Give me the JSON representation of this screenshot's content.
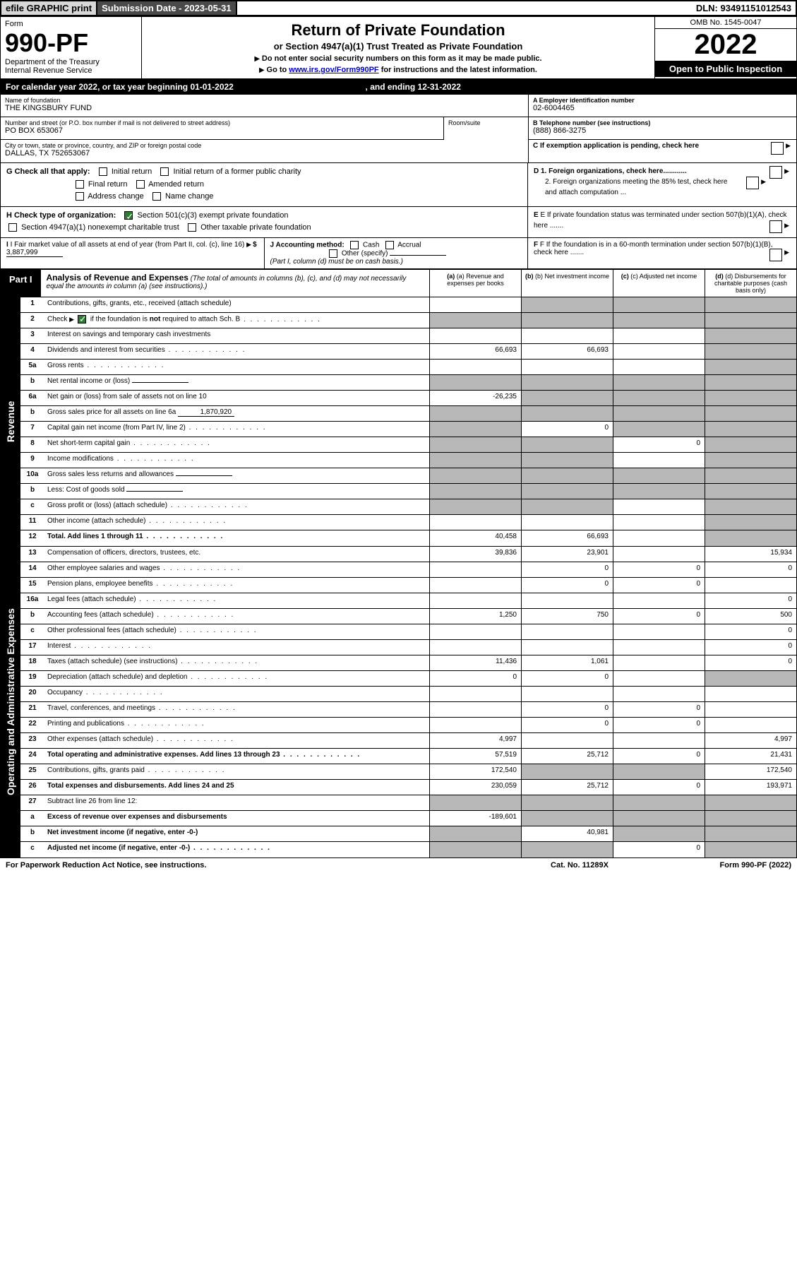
{
  "topbar": {
    "efile": "efile GRAPHIC print",
    "subdate_label": "Submission Date - ",
    "subdate": "2023-05-31",
    "dln_label": "DLN: ",
    "dln": "93491151012543"
  },
  "header": {
    "form_label": "Form",
    "form_num": "990-PF",
    "dept": "Department of the Treasury",
    "irs": "Internal Revenue Service",
    "title": "Return of Private Foundation",
    "subtitle": "or Section 4947(a)(1) Trust Treated as Private Foundation",
    "note1": "Do not enter social security numbers on this form as it may be made public.",
    "note2_a": "Go to ",
    "note2_link": "www.irs.gov/Form990PF",
    "note2_b": " for instructions and the latest information.",
    "omb": "OMB No. 1545-0047",
    "year": "2022",
    "open": "Open to Public Inspection"
  },
  "calyear": {
    "text_a": "For calendar year 2022, or tax year beginning ",
    "begin": "01-01-2022",
    "text_b": ", and ending ",
    "end": "12-31-2022"
  },
  "info": {
    "name_label": "Name of foundation",
    "name": "THE KINGSBURY FUND",
    "addr_label": "Number and street (or P.O. box number if mail is not delivered to street address)",
    "addr": "PO BOX 653067",
    "room_label": "Room/suite",
    "city_label": "City or town, state or province, country, and ZIP or foreign postal code",
    "city": "DALLAS, TX  752653067",
    "a_label": "A Employer identification number",
    "a_val": "02-6004465",
    "b_label": "B Telephone number (see instructions)",
    "b_val": "(888) 866-3275",
    "c_label": "C If exemption application is pending, check here"
  },
  "checks": {
    "g_label": "G Check all that apply:",
    "g_opts": [
      "Initial return",
      "Initial return of a former public charity",
      "Final return",
      "Amended return",
      "Address change",
      "Name change"
    ],
    "h_label": "H Check type of organization:",
    "h_opt1": "Section 501(c)(3) exempt private foundation",
    "h_opt2": "Section 4947(a)(1) nonexempt charitable trust",
    "h_opt3": "Other taxable private foundation",
    "d1": "D 1. Foreign organizations, check here............",
    "d2": "2. Foreign organizations meeting the 85% test, check here and attach computation ...",
    "e": "E  If private foundation status was terminated under section 507(b)(1)(A), check here .......",
    "f": "F  If the foundation is in a 60-month termination under section 507(b)(1)(B), check here ......."
  },
  "fmv": {
    "i_label": "I Fair market value of all assets at end of year (from Part II, col. (c), line 16)",
    "i_val": "3,887,999",
    "j_label": "J Accounting method:",
    "j_cash": "Cash",
    "j_accrual": "Accrual",
    "j_other": "Other (specify)",
    "j_note": "(Part I, column (d) must be on cash basis.)"
  },
  "part1": {
    "label": "Part I",
    "title": "Analysis of Revenue and Expenses",
    "note": " (The total of amounts in columns (b), (c), and (d) may not necessarily equal the amounts in column (a) (see instructions).)",
    "col_a": "(a)  Revenue and expenses per books",
    "col_b": "(b)  Net investment income",
    "col_c": "(c)  Adjusted net income",
    "col_d": "(d)  Disbursements for charitable purposes (cash basis only)"
  },
  "sides": {
    "revenue": "Revenue",
    "expenses": "Operating and Administrative Expenses"
  },
  "rows": [
    {
      "ln": "1",
      "desc": "Contributions, gifts, grants, etc., received (attach schedule)",
      "a": "",
      "b": "s",
      "c": "s",
      "d": "s"
    },
    {
      "ln": "2",
      "desc": "Check ▶ ☑ if the foundation is not required to attach Sch. B",
      "a": "s",
      "b": "s",
      "c": "s",
      "d": "s",
      "dots": true,
      "bold_not": true
    },
    {
      "ln": "3",
      "desc": "Interest on savings and temporary cash investments",
      "a": "",
      "b": "",
      "c": "",
      "d": "s"
    },
    {
      "ln": "4",
      "desc": "Dividends and interest from securities",
      "a": "66,693",
      "b": "66,693",
      "c": "",
      "d": "s",
      "dots": true
    },
    {
      "ln": "5a",
      "desc": "Gross rents",
      "a": "",
      "b": "",
      "c": "",
      "d": "s",
      "dots": true
    },
    {
      "ln": "b",
      "desc": "Net rental income or (loss)",
      "a": "s",
      "b": "s",
      "c": "s",
      "d": "s",
      "inline": ""
    },
    {
      "ln": "6a",
      "desc": "Net gain or (loss) from sale of assets not on line 10",
      "a": "-26,235",
      "b": "s",
      "c": "s",
      "d": "s"
    },
    {
      "ln": "b",
      "desc": "Gross sales price for all assets on line 6a",
      "a": "s",
      "b": "s",
      "c": "s",
      "d": "s",
      "inline": "1,870,920"
    },
    {
      "ln": "7",
      "desc": "Capital gain net income (from Part IV, line 2)",
      "a": "s",
      "b": "0",
      "c": "s",
      "d": "s",
      "dots": true
    },
    {
      "ln": "8",
      "desc": "Net short-term capital gain",
      "a": "s",
      "b": "s",
      "c": "0",
      "d": "s",
      "dots": true
    },
    {
      "ln": "9",
      "desc": "Income modifications",
      "a": "s",
      "b": "s",
      "c": "",
      "d": "s",
      "dots": true
    },
    {
      "ln": "10a",
      "desc": "Gross sales less returns and allowances",
      "a": "s",
      "b": "s",
      "c": "s",
      "d": "s",
      "inline": ""
    },
    {
      "ln": "b",
      "desc": "Less: Cost of goods sold",
      "a": "s",
      "b": "s",
      "c": "s",
      "d": "s",
      "dots": true,
      "inline": ""
    },
    {
      "ln": "c",
      "desc": "Gross profit or (loss) (attach schedule)",
      "a": "s",
      "b": "s",
      "c": "",
      "d": "s",
      "dots": true
    },
    {
      "ln": "11",
      "desc": "Other income (attach schedule)",
      "a": "",
      "b": "",
      "c": "",
      "d": "s",
      "dots": true
    },
    {
      "ln": "12",
      "desc": "Total. Add lines 1 through 11",
      "a": "40,458",
      "b": "66,693",
      "c": "",
      "d": "s",
      "dots": true,
      "bold": true
    }
  ],
  "exp_rows": [
    {
      "ln": "13",
      "desc": "Compensation of officers, directors, trustees, etc.",
      "a": "39,836",
      "b": "23,901",
      "c": "",
      "d": "15,934"
    },
    {
      "ln": "14",
      "desc": "Other employee salaries and wages",
      "a": "",
      "b": "0",
      "c": "0",
      "d": "0",
      "dots": true
    },
    {
      "ln": "15",
      "desc": "Pension plans, employee benefits",
      "a": "",
      "b": "0",
      "c": "0",
      "d": "",
      "dots": true
    },
    {
      "ln": "16a",
      "desc": "Legal fees (attach schedule)",
      "a": "",
      "b": "",
      "c": "",
      "d": "0",
      "dots": true
    },
    {
      "ln": "b",
      "desc": "Accounting fees (attach schedule)",
      "a": "1,250",
      "b": "750",
      "c": "0",
      "d": "500",
      "dots": true
    },
    {
      "ln": "c",
      "desc": "Other professional fees (attach schedule)",
      "a": "",
      "b": "",
      "c": "",
      "d": "0",
      "dots": true
    },
    {
      "ln": "17",
      "desc": "Interest",
      "a": "",
      "b": "",
      "c": "",
      "d": "0",
      "dots": true
    },
    {
      "ln": "18",
      "desc": "Taxes (attach schedule) (see instructions)",
      "a": "11,436",
      "b": "1,061",
      "c": "",
      "d": "0",
      "dots": true
    },
    {
      "ln": "19",
      "desc": "Depreciation (attach schedule) and depletion",
      "a": "0",
      "b": "0",
      "c": "",
      "d": "s",
      "dots": true
    },
    {
      "ln": "20",
      "desc": "Occupancy",
      "a": "",
      "b": "",
      "c": "",
      "d": "",
      "dots": true
    },
    {
      "ln": "21",
      "desc": "Travel, conferences, and meetings",
      "a": "",
      "b": "0",
      "c": "0",
      "d": "",
      "dots": true
    },
    {
      "ln": "22",
      "desc": "Printing and publications",
      "a": "",
      "b": "0",
      "c": "0",
      "d": "",
      "dots": true
    },
    {
      "ln": "23",
      "desc": "Other expenses (attach schedule)",
      "a": "4,997",
      "b": "",
      "c": "",
      "d": "4,997",
      "dots": true
    },
    {
      "ln": "24",
      "desc": "Total operating and administrative expenses. Add lines 13 through 23",
      "a": "57,519",
      "b": "25,712",
      "c": "0",
      "d": "21,431",
      "dots": true,
      "bold": true
    },
    {
      "ln": "25",
      "desc": "Contributions, gifts, grants paid",
      "a": "172,540",
      "b": "s",
      "c": "s",
      "d": "172,540",
      "dots": true
    },
    {
      "ln": "26",
      "desc": "Total expenses and disbursements. Add lines 24 and 25",
      "a": "230,059",
      "b": "25,712",
      "c": "0",
      "d": "193,971",
      "bold": true
    },
    {
      "ln": "27",
      "desc": "Subtract line 26 from line 12:",
      "a": "s",
      "b": "s",
      "c": "s",
      "d": "s"
    },
    {
      "ln": "a",
      "desc": "Excess of revenue over expenses and disbursements",
      "a": "-189,601",
      "b": "s",
      "c": "s",
      "d": "s",
      "bold": true
    },
    {
      "ln": "b",
      "desc": "Net investment income (if negative, enter -0-)",
      "a": "s",
      "b": "40,981",
      "c": "s",
      "d": "s",
      "bold": true
    },
    {
      "ln": "c",
      "desc": "Adjusted net income (if negative, enter -0-)",
      "a": "s",
      "b": "s",
      "c": "0",
      "d": "s",
      "bold": true,
      "dots": true
    }
  ],
  "footer": {
    "left": "For Paperwork Reduction Act Notice, see instructions.",
    "center": "Cat. No. 11289X",
    "right": "Form 990-PF (2022)"
  },
  "styling": {
    "shade_color": "#b8b8b8",
    "link_color": "#0000cc",
    "check_green": "#2e7d32",
    "font_sizes": {
      "body": 11,
      "form_num": 36,
      "year": 40,
      "title": 22
    }
  }
}
